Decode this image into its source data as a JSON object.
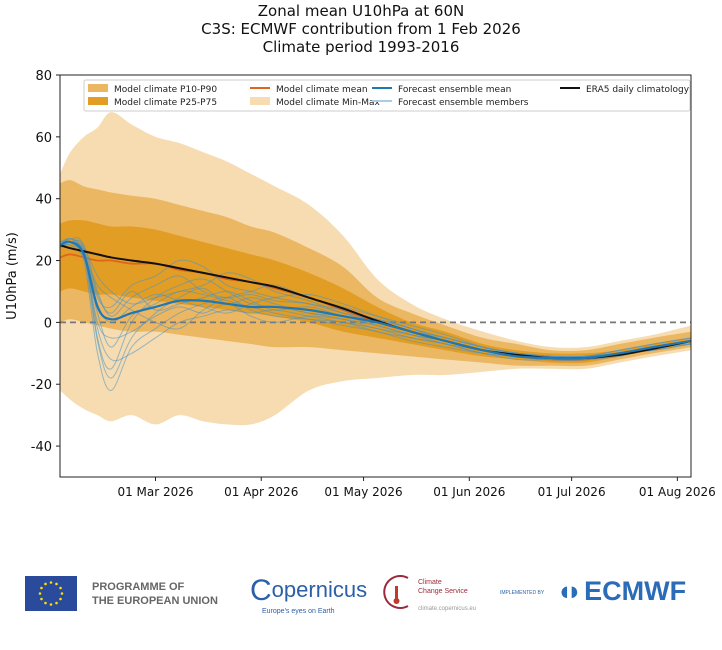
{
  "chart_data": {
    "type": "line",
    "title": [
      "Zonal mean U10hPa at 60N",
      "C3S: ECMWF contribution from 1 Feb 2026",
      "Climate period 1993-2016"
    ],
    "ylabel": "U10hPa (m/s)",
    "xlabel": "",
    "ylim": [
      -50,
      80
    ],
    "xlim": [
      "2026-02-01",
      "2026-08-05"
    ],
    "yticks": [
      -40,
      -20,
      0,
      20,
      40,
      60,
      80
    ],
    "xticks": [
      {
        "date": "2026-03-01",
        "label": "01 Mar 2026"
      },
      {
        "date": "2026-04-01",
        "label": "01 Apr 2026"
      },
      {
        "date": "2026-05-01",
        "label": "01 May 2026"
      },
      {
        "date": "2026-06-01",
        "label": "01 Jun 2026"
      },
      {
        "date": "2026-07-01",
        "label": "01 Jul 2026"
      },
      {
        "date": "2026-08-01",
        "label": "01 Aug 2026"
      }
    ],
    "zero_line": {
      "value": 0,
      "style": "dashed",
      "color": "#777777"
    },
    "legend_placement": "top",
    "legend": [
      {
        "label": "Model climate P10-P90",
        "kind": "patch",
        "color": "#ecb762"
      },
      {
        "label": "Model climate P25-P75",
        "kind": "patch",
        "color": "#e29d25"
      },
      {
        "label": "Model climate mean",
        "kind": "line",
        "color": "#e0651a"
      },
      {
        "label": "Model climate Min-Max",
        "kind": "patch",
        "color": "#f6dcb0"
      },
      {
        "label": "Forecast ensemble mean",
        "kind": "line",
        "color": "#1f77b4"
      },
      {
        "label": "Forecast ensemble members",
        "kind": "line",
        "color": "#a9cde6"
      },
      {
        "label": "ERA5 daily climatology",
        "kind": "line",
        "color": "#111111"
      }
    ],
    "x": [
      "2026-02-01",
      "2026-02-04",
      "2026-02-08",
      "2026-02-12",
      "2026-02-16",
      "2026-02-22",
      "2026-03-01",
      "2026-03-08",
      "2026-03-15",
      "2026-03-22",
      "2026-03-29",
      "2026-04-05",
      "2026-04-15",
      "2026-04-25",
      "2026-05-05",
      "2026-05-15",
      "2026-05-25",
      "2026-06-05",
      "2026-06-15",
      "2026-06-25",
      "2026-07-05",
      "2026-07-15",
      "2026-07-25",
      "2026-08-05"
    ],
    "minmax_upper": [
      48,
      55,
      60,
      63,
      68,
      64,
      60,
      58,
      55,
      52,
      48,
      44,
      38,
      28,
      14,
      6,
      1,
      -3,
      -6,
      -8,
      -8,
      -6,
      -4,
      -1
    ],
    "minmax_lower": [
      -22,
      -25,
      -28,
      -30,
      -32,
      -30,
      -33,
      -30,
      -32,
      -33,
      -33,
      -30,
      -22,
      -19,
      -18,
      -17,
      -17,
      -16,
      -15,
      -15,
      -15,
      -13,
      -11,
      -9
    ],
    "p10_p90_upper": [
      45,
      46,
      44,
      43,
      42,
      41,
      40,
      38,
      36,
      34,
      31,
      29,
      24,
      18,
      8,
      3,
      -1,
      -5,
      -7,
      -9,
      -9,
      -7,
      -5,
      -3
    ],
    "p10_p90_lower": [
      0,
      1,
      0,
      -1,
      -2,
      -3,
      -3,
      -4,
      -5,
      -6,
      -7,
      -8,
      -8,
      -9,
      -10,
      -11,
      -12,
      -13,
      -14,
      -14,
      -14,
      -12,
      -10,
      -8
    ],
    "p25_p75_upper": [
      32,
      33,
      33,
      32,
      31,
      31,
      30,
      28,
      26,
      24,
      22,
      20,
      16,
      11,
      5,
      0,
      -3,
      -7,
      -9,
      -10,
      -10,
      -9,
      -7,
      -5
    ],
    "p25_p75_lower": [
      10,
      11,
      10,
      9,
      9,
      8,
      7,
      6,
      5,
      4,
      3,
      2,
      0,
      -3,
      -5,
      -7,
      -9,
      -11,
      -12,
      -13,
      -13,
      -11,
      -9,
      -7
    ],
    "model_mean": [
      21,
      22,
      21,
      20,
      20,
      19,
      19,
      17,
      16,
      14,
      13,
      11,
      8,
      4,
      0,
      -3,
      -6,
      -9,
      -11,
      -12,
      -12,
      -10,
      -8,
      -6
    ],
    "era5": [
      25,
      24,
      23,
      22,
      21,
      20,
      19,
      17.5,
      16,
      14.5,
      13,
      11.5,
      8,
      4.5,
      0.5,
      -3,
      -6,
      -9,
      -10.5,
      -11.5,
      -11.5,
      -10.5,
      -8.5,
      -6
    ],
    "ensemble_mean": [
      25,
      26,
      22,
      5,
      1,
      3,
      5,
      7,
      7,
      6,
      5,
      5,
      4,
      2,
      0,
      -3,
      -6,
      -9,
      -11,
      -11.5,
      -11.5,
      -10,
      -8,
      -6
    ],
    "members": [
      [
        25,
        27,
        24,
        -5,
        -15,
        0,
        8,
        12,
        14,
        10,
        6,
        5,
        3,
        1,
        -2,
        -4,
        -7,
        -9,
        -11,
        -12,
        -11,
        -10,
        -8,
        -6
      ],
      [
        25,
        26,
        25,
        10,
        2,
        8,
        12,
        15,
        10,
        8,
        9,
        7,
        6,
        3,
        1,
        -2,
        -5,
        -8,
        -10,
        -11,
        -11,
        -9,
        -7,
        -5
      ],
      [
        24,
        25,
        20,
        -10,
        -22,
        -8,
        -2,
        3,
        6,
        8,
        4,
        2,
        1,
        0,
        -3,
        -5,
        -7,
        -10,
        -11,
        -12,
        -12,
        -10,
        -8,
        -6
      ],
      [
        26,
        27,
        23,
        8,
        5,
        12,
        15,
        20,
        18,
        12,
        10,
        8,
        6,
        4,
        1,
        -2,
        -6,
        -9,
        -11,
        -11,
        -11,
        -10,
        -8,
        -6
      ],
      [
        25,
        26,
        22,
        0,
        -5,
        -3,
        2,
        5,
        3,
        6,
        2,
        0,
        2,
        1,
        -1,
        -4,
        -6,
        -9,
        -10,
        -12,
        -12,
        -10,
        -9,
        -7
      ],
      [
        25,
        25,
        21,
        12,
        8,
        4,
        0,
        -2,
        4,
        8,
        10,
        12,
        8,
        5,
        2,
        -1,
        -4,
        -8,
        -11,
        -12,
        -12,
        -11,
        -8,
        -6
      ],
      [
        24,
        26,
        24,
        15,
        10,
        6,
        8,
        10,
        12,
        16,
        14,
        10,
        7,
        3,
        0,
        -3,
        -6,
        -9,
        -10,
        -11,
        -12,
        -10,
        -8,
        -6
      ],
      [
        25,
        27,
        22,
        -2,
        -12,
        -10,
        -5,
        0,
        2,
        4,
        3,
        4,
        2,
        0,
        -2,
        -5,
        -7,
        -10,
        -12,
        -12,
        -11,
        -10,
        -8,
        -7
      ],
      [
        25,
        26,
        23,
        6,
        0,
        5,
        9,
        7,
        5,
        3,
        6,
        8,
        9,
        6,
        2,
        -2,
        -5,
        -8,
        -10,
        -11,
        -11,
        -9,
        -7,
        -5
      ],
      [
        26,
        26,
        21,
        3,
        -8,
        2,
        6,
        10,
        9,
        7,
        5,
        3,
        1,
        -1,
        -3,
        -6,
        -8,
        -10,
        -11,
        -12,
        -12,
        -10,
        -8,
        -6
      ],
      [
        25,
        27,
        24,
        9,
        3,
        10,
        4,
        6,
        8,
        10,
        7,
        4,
        5,
        2,
        0,
        -3,
        -5,
        -8,
        -10,
        -11,
        -11,
        -10,
        -8,
        -6
      ],
      [
        25,
        26,
        22,
        -6,
        -18,
        -5,
        3,
        8,
        11,
        6,
        8,
        6,
        3,
        2,
        -1,
        -4,
        -6,
        -9,
        -11,
        -11,
        -12,
        -10,
        -9,
        -7
      ]
    ]
  },
  "footer": {
    "eu_line1": "PROGRAMME OF",
    "eu_line2": "THE EUROPEAN UNION",
    "copernicus": "opernicus",
    "copernicus_tagline": "Europe's eyes on Earth",
    "c3s_line1": "Climate",
    "c3s_line2": "Change Service",
    "c3s_url": "climate.copernicus.eu",
    "implemented_by": "IMPLEMENTED BY",
    "ecmwf": "ECMWF"
  }
}
